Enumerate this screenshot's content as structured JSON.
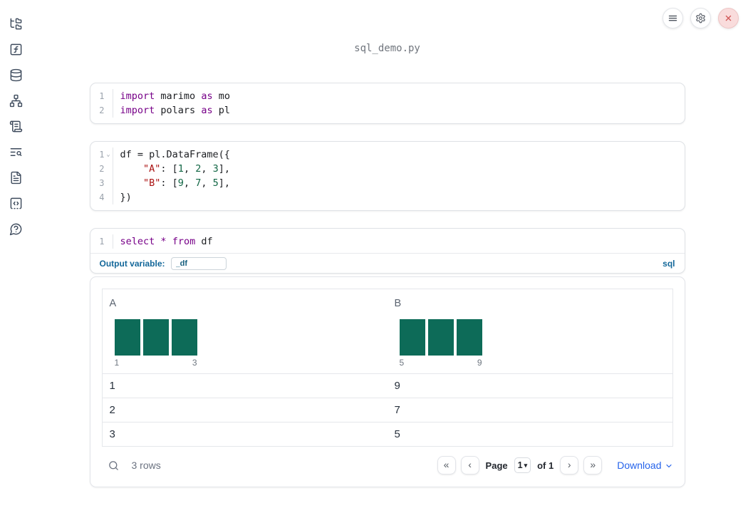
{
  "window": {
    "title": "sql_demo.py"
  },
  "colors": {
    "keyword": "#770088",
    "string": "#aa1111",
    "number": "#116644",
    "histogram_bar": "#0d6b58",
    "accent": "#14689a",
    "link": "#2563eb"
  },
  "topbar": {
    "buttons": [
      {
        "icon": "hamburger-menu-icon"
      },
      {
        "icon": "gear-icon"
      },
      {
        "icon": "close-x-icon"
      }
    ]
  },
  "sidebar": {
    "items": [
      {
        "icon": "folder-tree-icon"
      },
      {
        "icon": "function-square-icon"
      },
      {
        "icon": "database-icon"
      },
      {
        "icon": "dependency-graph-icon"
      },
      {
        "icon": "scroll-logs-icon"
      },
      {
        "icon": "list-search-icon"
      },
      {
        "icon": "document-icon"
      },
      {
        "icon": "code-square-icon"
      },
      {
        "icon": "help-chat-icon"
      }
    ]
  },
  "cells": [
    {
      "type": "python",
      "lines": [
        {
          "n": "1",
          "fold": false,
          "tokens": [
            [
              "k",
              "import"
            ],
            [
              "p",
              " marimo "
            ],
            [
              "k",
              "as"
            ],
            [
              "p",
              " mo"
            ]
          ]
        },
        {
          "n": "2",
          "fold": false,
          "tokens": [
            [
              "k",
              "import"
            ],
            [
              "p",
              " polars "
            ],
            [
              "k",
              "as"
            ],
            [
              "p",
              " pl"
            ]
          ]
        }
      ]
    },
    {
      "type": "python",
      "lines": [
        {
          "n": "1",
          "fold": true,
          "tokens": [
            [
              "p",
              "df = pl.DataFrame({"
            ]
          ]
        },
        {
          "n": "2",
          "fold": false,
          "tokens": [
            [
              "p",
              "    "
            ],
            [
              "s",
              "\"A\""
            ],
            [
              "p",
              ": ["
            ],
            [
              "n",
              "1"
            ],
            [
              "p",
              ", "
            ],
            [
              "n",
              "2"
            ],
            [
              "p",
              ", "
            ],
            [
              "n",
              "3"
            ],
            [
              "p",
              "],"
            ]
          ]
        },
        {
          "n": "3",
          "fold": false,
          "tokens": [
            [
              "p",
              "    "
            ],
            [
              "s",
              "\"B\""
            ],
            [
              "p",
              ": ["
            ],
            [
              "n",
              "9"
            ],
            [
              "p",
              ", "
            ],
            [
              "n",
              "7"
            ],
            [
              "p",
              ", "
            ],
            [
              "n",
              "5"
            ],
            [
              "p",
              "],"
            ]
          ]
        },
        {
          "n": "4",
          "fold": false,
          "tokens": [
            [
              "p",
              "})"
            ]
          ]
        }
      ]
    },
    {
      "type": "sql",
      "lines": [
        {
          "n": "1",
          "fold": false,
          "tokens": [
            [
              "k",
              "select"
            ],
            [
              "p",
              " "
            ],
            [
              "k",
              "*"
            ],
            [
              "p",
              " "
            ],
            [
              "k",
              "from"
            ],
            [
              "p",
              " df"
            ]
          ]
        }
      ]
    }
  ],
  "sql_footer": {
    "label": "Output variable:",
    "value": "_df",
    "badge": "sql"
  },
  "table": {
    "columns": [
      {
        "name": "A",
        "min_label": "1",
        "max_label": "3",
        "bars": [
          1,
          1,
          1
        ]
      },
      {
        "name": "B",
        "min_label": "5",
        "max_label": "9",
        "bars": [
          1,
          1,
          1
        ]
      }
    ],
    "rows": [
      [
        "1",
        "9"
      ],
      [
        "2",
        "7"
      ],
      [
        "3",
        "5"
      ]
    ],
    "footer": {
      "rows_label": "3 rows",
      "page_label": "Page",
      "page_value": "1",
      "of_label": "of 1",
      "download_label": "Download",
      "first_icon": "«",
      "prev_icon": "‹",
      "next_icon": "›",
      "last_icon": "»",
      "select_caret": "▾"
    }
  }
}
